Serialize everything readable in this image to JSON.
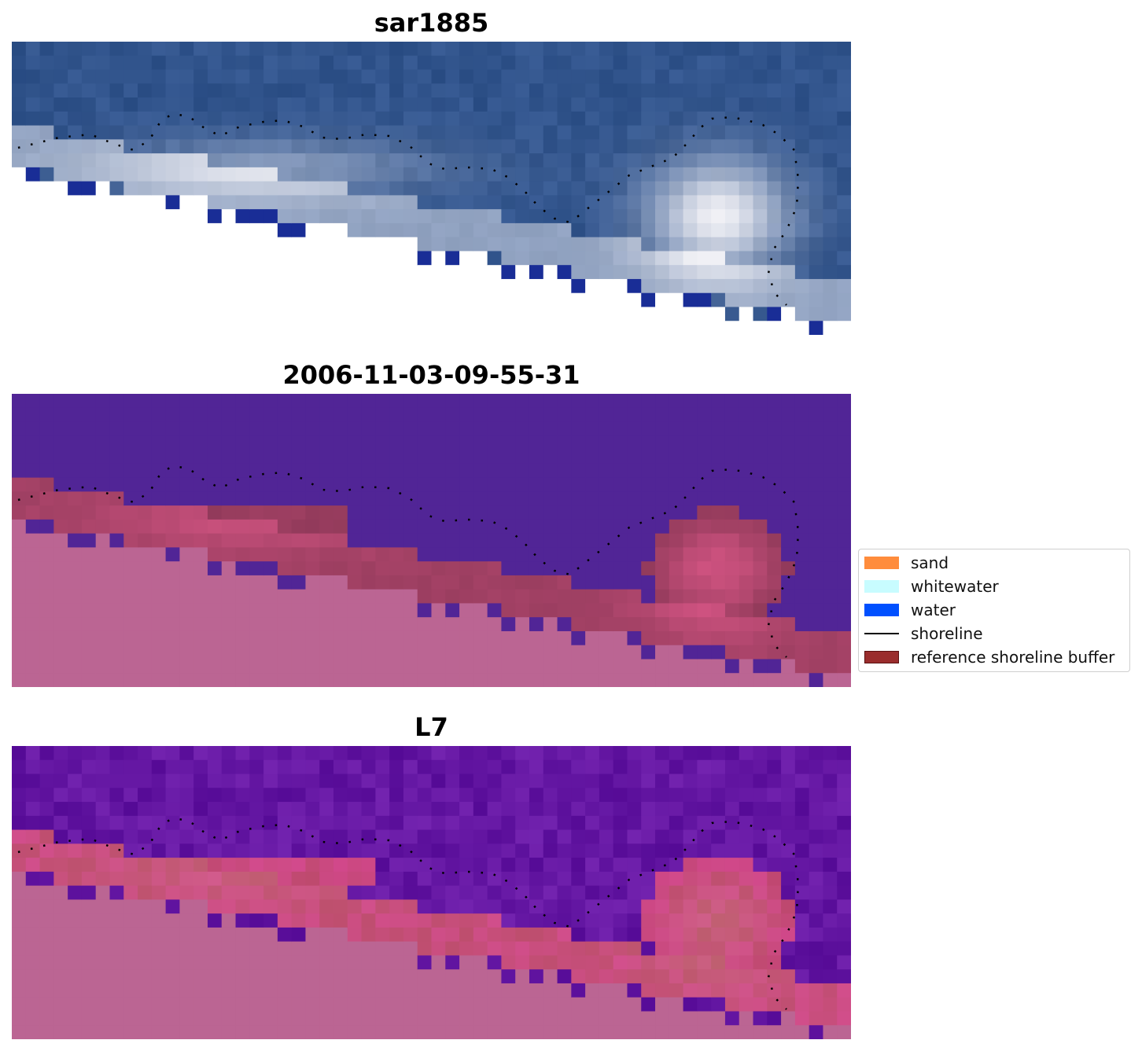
{
  "panels": [
    {
      "title": "sar1885",
      "style": "rgb"
    },
    {
      "title": "2006-11-03-09-55-31",
      "style": "classified"
    },
    {
      "title": "L7",
      "style": "index"
    }
  ],
  "legend": {
    "items": [
      {
        "label": "sand",
        "kind": "patch",
        "color": "#ff8c3c"
      },
      {
        "label": "whitewater",
        "kind": "patch",
        "color": "#c8fcff"
      },
      {
        "label": "water",
        "kind": "patch",
        "color": "#0050ff"
      },
      {
        "label": "shoreline",
        "kind": "line",
        "color": "#000000"
      },
      {
        "label": "reference shoreline buffer",
        "kind": "patch",
        "color": "#9a2d2d"
      }
    ]
  }
}
